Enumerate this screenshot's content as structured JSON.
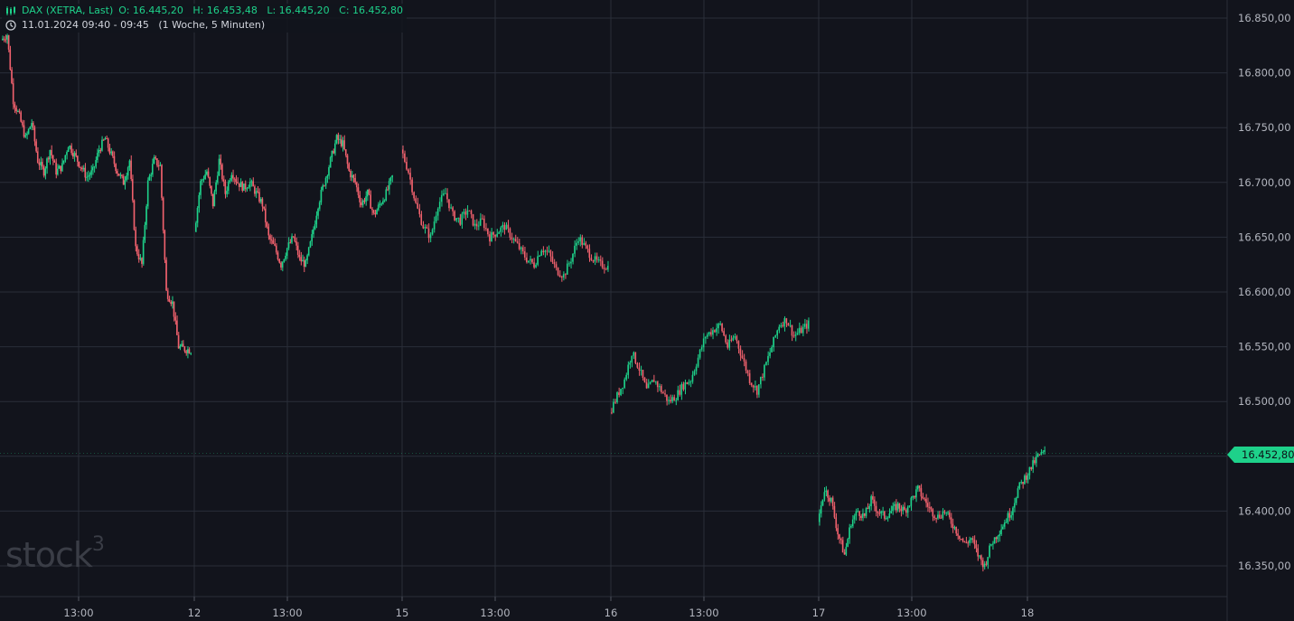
{
  "legend": {
    "instrument": "DAX (XETRA, Last)",
    "ohlc": "O: 16.445,20   H: 16.453,48   L: 16.445,20   C: 16.452,80",
    "period": "11.01.2024 09:40 - 09:45   (1 Woche, 5 Minuten)"
  },
  "last_price_tag": "16.452,80",
  "logo_text": "stock",
  "logo_sup": "3",
  "colors": {
    "background": "#12141c",
    "up": "#1ed18a",
    "down": "#f0616d",
    "grid": "#2a2e39"
  },
  "chart_data": {
    "type": "candlestick",
    "title": "DAX (XETRA, Last)",
    "y_ticks": [
      "16.350,00",
      "16.400,00",
      "16.450,00",
      "16.500,00",
      "16.550,00",
      "16.600,00",
      "16.650,00",
      "16.700,00",
      "16.750,00",
      "16.800,00",
      "16.850,00"
    ],
    "ylim": [
      16330,
      16860
    ],
    "x_ticks": [
      "13:00",
      "12",
      "13:00",
      "15",
      "13:00",
      "16",
      "13:00",
      "17",
      "13:00",
      "18"
    ],
    "last": 16452.8,
    "sessions": [
      {
        "day": "11",
        "path": [
          16830,
          16835,
          16775,
          16760,
          16740,
          16755,
          16720,
          16710,
          16730,
          16710,
          16715,
          16735,
          16725,
          16715,
          16705,
          16710,
          16730,
          16740,
          16725,
          16710,
          16700,
          16720,
          16640,
          16625,
          16700,
          16720,
          16715,
          16600,
          16590,
          16550,
          16548,
          16547
        ]
      },
      {
        "day": "12",
        "path": [
          16655,
          16700,
          16710,
          16680,
          16720,
          16690,
          16710,
          16700,
          16695,
          16700,
          16690,
          16680,
          16650,
          16640,
          16625,
          16640,
          16650,
          16630,
          16625,
          16650,
          16680,
          16700,
          16720,
          16740,
          16735,
          16710,
          16700,
          16680,
          16690,
          16670,
          16680,
          16690,
          16705
        ]
      },
      {
        "day": "15",
        "path": [
          16730,
          16710,
          16680,
          16660,
          16650,
          16680,
          16690,
          16670,
          16665,
          16675,
          16660,
          16665,
          16650,
          16655,
          16660,
          16650,
          16640,
          16630,
          16625,
          16640,
          16635,
          16620,
          16615,
          16630,
          16650,
          16640,
          16630,
          16625,
          16623
        ]
      },
      {
        "day": "16",
        "path": [
          16490,
          16505,
          16520,
          16545,
          16530,
          16510,
          16520,
          16510,
          16500,
          16505,
          16515,
          16520,
          16540,
          16560,
          16565,
          16570,
          16550,
          16560,
          16540,
          16520,
          16510,
          16530,
          16550,
          16570,
          16575,
          16560,
          16565,
          16571
        ]
      },
      {
        "day": "17",
        "path": [
          16390,
          16420,
          16410,
          16380,
          16360,
          16390,
          16400,
          16395,
          16410,
          16400,
          16395,
          16400,
          16405,
          16400,
          16410,
          16420,
          16410,
          16400,
          16395,
          16400,
          16390,
          16380,
          16370,
          16375,
          16360,
          16350,
          16370,
          16380,
          16390,
          16400,
          16420,
          16430,
          16440,
          16450,
          16453
        ]
      }
    ]
  }
}
